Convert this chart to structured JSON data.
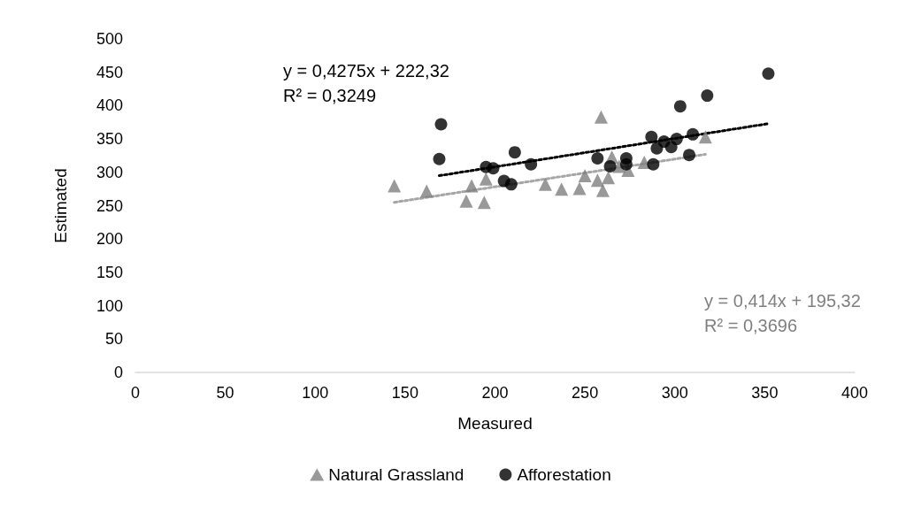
{
  "chart_data": {
    "type": "scatter",
    "xlabel": "Measured",
    "ylabel": "Estimated",
    "xlim": [
      0,
      400
    ],
    "xticks": [
      0,
      50,
      100,
      150,
      200,
      250,
      300,
      350,
      400
    ],
    "ylim": [
      0,
      500
    ],
    "yticks": [
      0,
      50,
      100,
      150,
      200,
      250,
      300,
      350,
      400,
      450,
      500
    ],
    "grid": false,
    "legend": "bottom",
    "series": [
      {
        "name": "Natural Grassland",
        "color": "#808080",
        "marker": "triangle",
        "x": [
          144,
          162,
          184,
          187,
          194,
          195,
          228,
          237,
          247,
          250,
          257,
          259,
          260,
          263,
          265,
          269,
          273,
          274,
          283,
          317
        ],
        "values": [
          280,
          272,
          257,
          280,
          255,
          290,
          282,
          275,
          276,
          295,
          288,
          383,
          273,
          292,
          323,
          309,
          null,
          303,
          315,
          353
        ]
      },
      {
        "name": "Afforestation",
        "color": "#000000",
        "marker": "circle",
        "x": [
          170,
          169,
          195,
          199,
          211,
          205,
          209,
          220,
          257,
          264,
          273,
          273,
          287,
          290,
          294,
          298,
          301,
          310,
          303,
          318,
          352,
          308,
          288
        ],
        "values": [
          372,
          320,
          308,
          306,
          330,
          287,
          282,
          312,
          321,
          309,
          321,
          312,
          353,
          336,
          346,
          338,
          350,
          357,
          399,
          415,
          448,
          326,
          312
        ]
      },
      {
        "type": "line",
        "color": "#000000",
        "line_style": "dotted",
        "marker": "none",
        "x": [
          169,
          352
        ],
        "values": [
          295,
          373
        ]
      },
      {
        "type": "line",
        "color": "#a6a6a6",
        "line_style": "dotted",
        "marker": "none",
        "x": [
          144,
          317
        ],
        "values": [
          255,
          327
        ]
      }
    ],
    "annotations": [
      "y = 0,4275x + 222,32",
      "R² = 0,3249",
      "y = 0,414x + 195,32",
      "R² = 0,3696"
    ]
  }
}
